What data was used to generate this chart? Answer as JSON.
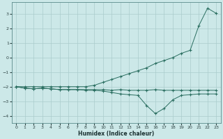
{
  "xlabel": "Humidex (Indice chaleur)",
  "line1_x": [
    0,
    1,
    2,
    3,
    4,
    5,
    6,
    7,
    8,
    9,
    10,
    11,
    12,
    13,
    14,
    15,
    16,
    17,
    18,
    19,
    20,
    21,
    22,
    23
  ],
  "line1_y": [
    -2.0,
    -2.1,
    -2.15,
    -2.1,
    -2.15,
    -2.2,
    -2.2,
    -2.2,
    -2.2,
    -2.2,
    -2.2,
    -2.25,
    -2.2,
    -2.25,
    -2.25,
    -2.25,
    -2.2,
    -2.25,
    -2.25,
    -2.25,
    -2.25,
    -2.25,
    -2.25,
    -2.25
  ],
  "line2_x": [
    0,
    1,
    2,
    3,
    4,
    5,
    6,
    7,
    8,
    9,
    10,
    11,
    12,
    13,
    14,
    15,
    16,
    17,
    18,
    19,
    20,
    21,
    22,
    23
  ],
  "line2_y": [
    -2.0,
    -2.1,
    -2.15,
    -2.1,
    -2.15,
    -2.2,
    -2.2,
    -2.2,
    -2.25,
    -2.25,
    -2.3,
    -2.4,
    -2.5,
    -2.55,
    -2.6,
    -3.3,
    -3.85,
    -3.5,
    -2.9,
    -2.6,
    -2.55,
    -2.5,
    -2.5,
    -2.5
  ],
  "line3_x": [
    0,
    1,
    2,
    3,
    4,
    5,
    6,
    7,
    8,
    9,
    10,
    11,
    12,
    13,
    14,
    15,
    16,
    17,
    18,
    19,
    20,
    21,
    22,
    23
  ],
  "line3_y": [
    -2.0,
    -2.0,
    -2.0,
    -2.0,
    -2.0,
    -2.0,
    -2.0,
    -2.0,
    -2.0,
    -1.9,
    -1.7,
    -1.5,
    -1.3,
    -1.1,
    -0.9,
    -0.7,
    -0.4,
    -0.2,
    0.0,
    0.3,
    0.5,
    2.2,
    3.4,
    3.05
  ],
  "xlim": [
    -0.5,
    23.5
  ],
  "ylim": [
    -4.5,
    3.8
  ],
  "yticks": [
    -4,
    -3,
    -2,
    -1,
    0,
    1,
    2,
    3
  ],
  "xticks": [
    0,
    1,
    2,
    3,
    4,
    5,
    6,
    7,
    8,
    9,
    10,
    11,
    12,
    13,
    14,
    15,
    16,
    17,
    18,
    19,
    20,
    21,
    22,
    23
  ],
  "line_color": "#2a6e60",
  "bg_color": "#cce8e8",
  "grid_color": "#aacccc",
  "fig_bg": "#cce8e8"
}
